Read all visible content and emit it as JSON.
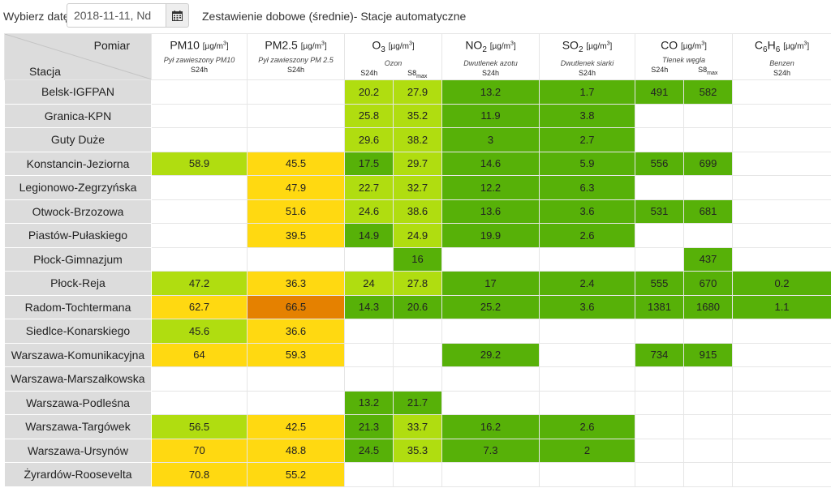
{
  "toolbar": {
    "date_label": "Wybierz datę:",
    "date_value": "2018-11-11, Nd",
    "calendar_icon": "calendar-icon",
    "title": "Zestawienie dobowe (średnie)- Stacje automatyczne"
  },
  "header": {
    "pomiar": "Pomiar",
    "stacja": "Stacja",
    "unit": "[µg/m³]",
    "pm10": {
      "name": "PM10",
      "desc": "Pył zawieszony PM10",
      "sub": [
        "S24h"
      ]
    },
    "pm25": {
      "name": "PM2.5",
      "desc": "Pył zawieszony PM 2.5",
      "sub": [
        "S24h"
      ]
    },
    "o3": {
      "name": "O",
      "name_sub": "3",
      "desc": "Ozon",
      "sub": [
        "S24h",
        "S8"
      ],
      "sub_max": "max"
    },
    "no2": {
      "name": "NO",
      "name_sub": "2",
      "desc": "Dwutlenek azotu",
      "sub": [
        "S24h"
      ]
    },
    "so2": {
      "name": "SO",
      "name_sub": "2",
      "desc": "Dwutlenek siarki",
      "sub": [
        "S24h"
      ]
    },
    "co": {
      "name": "CO",
      "desc": "Tlenek węgla",
      "sub": [
        "S24h",
        "S8"
      ],
      "sub_max": "max"
    },
    "c6h6": {
      "name": "C",
      "name_sub": "6",
      "name2": "H",
      "name_sub2": "6",
      "desc": "Benzen",
      "sub": [
        "S24h"
      ]
    }
  },
  "colors": {
    "very_good": "#57b108",
    "good": "#b0dd10",
    "moderate": "#ffd911",
    "sufficient": "#e58100",
    "station_bg": "#dcdcdc"
  },
  "rows": [
    {
      "station": "Belsk-IGFPAN",
      "cells": [
        [
          "",
          ""
        ],
        [
          "",
          ""
        ],
        [
          "20.2",
          "g"
        ],
        [
          "27.9",
          "g"
        ],
        [
          "13.2",
          "vg"
        ],
        [
          "1.7",
          "vg"
        ],
        [
          "491",
          "vg"
        ],
        [
          "582",
          "vg"
        ],
        [
          "",
          ""
        ]
      ]
    },
    {
      "station": "Granica-KPN",
      "cells": [
        [
          "",
          ""
        ],
        [
          "",
          ""
        ],
        [
          "25.8",
          "g"
        ],
        [
          "35.2",
          "g"
        ],
        [
          "11.9",
          "vg"
        ],
        [
          "3.8",
          "vg"
        ],
        [
          "",
          ""
        ],
        [
          "",
          ""
        ],
        [
          "",
          ""
        ]
      ]
    },
    {
      "station": "Guty Duże",
      "cells": [
        [
          "",
          ""
        ],
        [
          "",
          ""
        ],
        [
          "29.6",
          "g"
        ],
        [
          "38.2",
          "g"
        ],
        [
          "3",
          "vg"
        ],
        [
          "2.7",
          "vg"
        ],
        [
          "",
          ""
        ],
        [
          "",
          ""
        ],
        [
          "",
          ""
        ]
      ]
    },
    {
      "station": "Konstancin-Jeziorna",
      "cells": [
        [
          "58.9",
          "g"
        ],
        [
          "45.5",
          "y"
        ],
        [
          "17.5",
          "vg"
        ],
        [
          "29.7",
          "g"
        ],
        [
          "14.6",
          "vg"
        ],
        [
          "5.9",
          "vg"
        ],
        [
          "556",
          "vg"
        ],
        [
          "699",
          "vg"
        ],
        [
          "",
          ""
        ]
      ]
    },
    {
      "station": "Legionowo-Zegrzyńska",
      "cells": [
        [
          "",
          ""
        ],
        [
          "47.9",
          "y"
        ],
        [
          "22.7",
          "g"
        ],
        [
          "32.7",
          "g"
        ],
        [
          "12.2",
          "vg"
        ],
        [
          "6.3",
          "vg"
        ],
        [
          "",
          ""
        ],
        [
          "",
          ""
        ],
        [
          "",
          ""
        ]
      ]
    },
    {
      "station": "Otwock-Brzozowa",
      "cells": [
        [
          "",
          ""
        ],
        [
          "51.6",
          "y"
        ],
        [
          "24.6",
          "g"
        ],
        [
          "38.6",
          "g"
        ],
        [
          "13.6",
          "vg"
        ],
        [
          "3.6",
          "vg"
        ],
        [
          "531",
          "vg"
        ],
        [
          "681",
          "vg"
        ],
        [
          "",
          ""
        ]
      ]
    },
    {
      "station": "Piastów-Pułaskiego",
      "cells": [
        [
          "",
          ""
        ],
        [
          "39.5",
          "y"
        ],
        [
          "14.9",
          "vg"
        ],
        [
          "24.9",
          "g"
        ],
        [
          "19.9",
          "vg"
        ],
        [
          "2.6",
          "vg"
        ],
        [
          "",
          ""
        ],
        [
          "",
          ""
        ],
        [
          "",
          ""
        ]
      ]
    },
    {
      "station": "Płock-Gimnazjum",
      "cells": [
        [
          "",
          ""
        ],
        [
          "",
          ""
        ],
        [
          "",
          ""
        ],
        [
          "16",
          "vg"
        ],
        [
          "",
          ""
        ],
        [
          "",
          ""
        ],
        [
          "",
          ""
        ],
        [
          "437",
          "vg"
        ],
        [
          "",
          ""
        ]
      ]
    },
    {
      "station": "Płock-Reja",
      "cells": [
        [
          "47.2",
          "g"
        ],
        [
          "36.3",
          "y"
        ],
        [
          "24",
          "g"
        ],
        [
          "27.8",
          "g"
        ],
        [
          "17",
          "vg"
        ],
        [
          "2.4",
          "vg"
        ],
        [
          "555",
          "vg"
        ],
        [
          "670",
          "vg"
        ],
        [
          "0.2",
          "vg"
        ]
      ]
    },
    {
      "station": "Radom-Tochtermana",
      "cells": [
        [
          "62.7",
          "y"
        ],
        [
          "66.5",
          "o"
        ],
        [
          "14.3",
          "vg"
        ],
        [
          "20.6",
          "vg"
        ],
        [
          "25.2",
          "vg"
        ],
        [
          "3.6",
          "vg"
        ],
        [
          "1381",
          "vg"
        ],
        [
          "1680",
          "vg"
        ],
        [
          "1.1",
          "vg"
        ]
      ]
    },
    {
      "station": "Siedlce-Konarskiego",
      "cells": [
        [
          "45.6",
          "g"
        ],
        [
          "36.6",
          "y"
        ],
        [
          "",
          ""
        ],
        [
          "",
          ""
        ],
        [
          "",
          ""
        ],
        [
          "",
          ""
        ],
        [
          "",
          ""
        ],
        [
          "",
          ""
        ],
        [
          "",
          ""
        ]
      ]
    },
    {
      "station": "Warszawa-Komunikacyjna",
      "cells": [
        [
          "64",
          "y"
        ],
        [
          "59.3",
          "y"
        ],
        [
          "",
          ""
        ],
        [
          "",
          ""
        ],
        [
          "29.2",
          "vg"
        ],
        [
          "",
          ""
        ],
        [
          "734",
          "vg"
        ],
        [
          "915",
          "vg"
        ],
        [
          "",
          ""
        ]
      ]
    },
    {
      "station": "Warszawa-Marszałkowska",
      "cells": [
        [
          "",
          ""
        ],
        [
          "",
          ""
        ],
        [
          "",
          ""
        ],
        [
          "",
          ""
        ],
        [
          "",
          ""
        ],
        [
          "",
          ""
        ],
        [
          "",
          ""
        ],
        [
          "",
          ""
        ],
        [
          "",
          ""
        ]
      ]
    },
    {
      "station": "Warszawa-Podleśna",
      "cells": [
        [
          "",
          ""
        ],
        [
          "",
          ""
        ],
        [
          "13.2",
          "vg"
        ],
        [
          "21.7",
          "vg"
        ],
        [
          "",
          ""
        ],
        [
          "",
          ""
        ],
        [
          "",
          ""
        ],
        [
          "",
          ""
        ],
        [
          "",
          ""
        ]
      ]
    },
    {
      "station": "Warszawa-Targówek",
      "cells": [
        [
          "56.5",
          "g"
        ],
        [
          "42.5",
          "y"
        ],
        [
          "21.3",
          "vg"
        ],
        [
          "33.7",
          "g"
        ],
        [
          "16.2",
          "vg"
        ],
        [
          "2.6",
          "vg"
        ],
        [
          "",
          ""
        ],
        [
          "",
          ""
        ],
        [
          "",
          ""
        ]
      ]
    },
    {
      "station": "Warszawa-Ursynów",
      "cells": [
        [
          "70",
          "y"
        ],
        [
          "48.8",
          "y"
        ],
        [
          "24.5",
          "vg"
        ],
        [
          "35.3",
          "g"
        ],
        [
          "7.3",
          "vg"
        ],
        [
          "2",
          "vg"
        ],
        [
          "",
          ""
        ],
        [
          "",
          ""
        ],
        [
          "",
          ""
        ]
      ]
    },
    {
      "station": "Żyrardów-Roosevelta",
      "cells": [
        [
          "70.8",
          "y"
        ],
        [
          "55.2",
          "y"
        ],
        [
          "",
          ""
        ],
        [
          "",
          ""
        ],
        [
          "",
          ""
        ],
        [
          "",
          ""
        ],
        [
          "",
          ""
        ],
        [
          "",
          ""
        ],
        [
          "",
          ""
        ]
      ]
    }
  ]
}
